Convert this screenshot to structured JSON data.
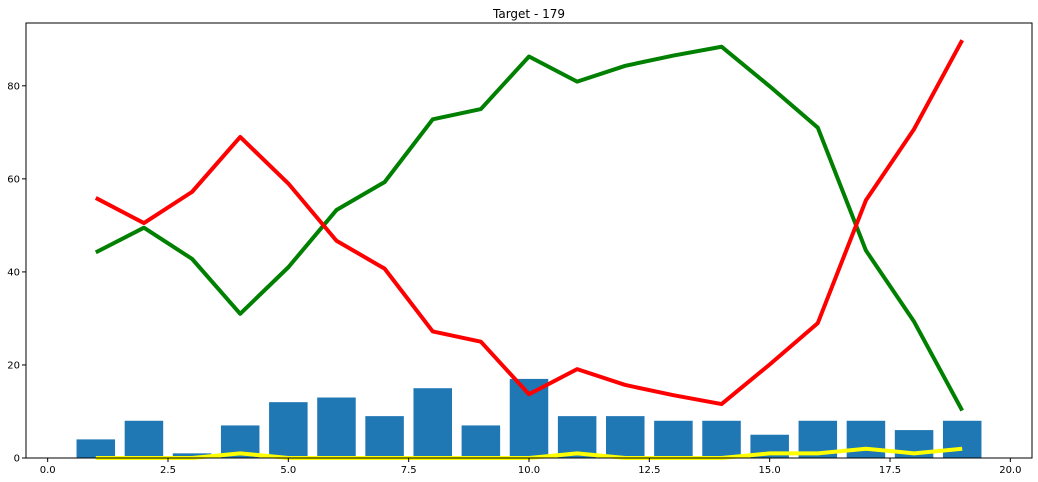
{
  "chart_data": {
    "type": "bar+line",
    "title": "Target - 179",
    "xlabel": "",
    "ylabel": "",
    "xlim": [
      -0.45,
      20.45
    ],
    "ylim": [
      0,
      93.5
    ],
    "grid": false,
    "x_ticks": [
      0.0,
      2.5,
      5.0,
      7.5,
      10.0,
      12.5,
      15.0,
      17.5,
      20.0
    ],
    "x_tick_labels": [
      "0.0",
      "2.5",
      "5.0",
      "7.5",
      "10.0",
      "12.5",
      "15.0",
      "17.5",
      "20.0"
    ],
    "y_ticks": [
      0,
      20,
      40,
      60,
      80
    ],
    "y_tick_labels": [
      "0",
      "20",
      "40",
      "60",
      "80"
    ],
    "x": [
      1,
      2,
      3,
      4,
      5,
      6,
      7,
      8,
      9,
      10,
      11,
      12,
      13,
      14,
      15,
      16,
      17,
      18,
      19
    ],
    "bars": {
      "color": "#1f77b4",
      "values": [
        4,
        8,
        1,
        7,
        12,
        13,
        9,
        15,
        7,
        17,
        9,
        9,
        8,
        8,
        5,
        8,
        8,
        6,
        8
      ]
    },
    "series": [
      {
        "color": "#008000",
        "values": [
          44.2,
          49.5,
          42.8,
          31.0,
          41.0,
          53.3,
          59.3,
          72.8,
          75.0,
          86.3,
          80.9,
          84.3,
          86.5,
          88.4,
          79.9,
          71.0,
          44.6,
          29.3,
          10.2
        ]
      },
      {
        "color": "#ff0000",
        "values": [
          55.9,
          50.5,
          57.2,
          69.0,
          59.0,
          46.7,
          40.7,
          27.2,
          25.0,
          13.7,
          19.1,
          15.7,
          13.5,
          11.6,
          20.1,
          29.0,
          55.4,
          70.7,
          89.8
        ]
      },
      {
        "color": "#ffff00",
        "values": [
          0,
          0,
          0,
          1,
          0,
          0,
          0,
          0,
          0,
          0,
          1,
          0,
          0,
          0,
          1,
          1,
          2,
          1,
          2
        ]
      }
    ]
  }
}
